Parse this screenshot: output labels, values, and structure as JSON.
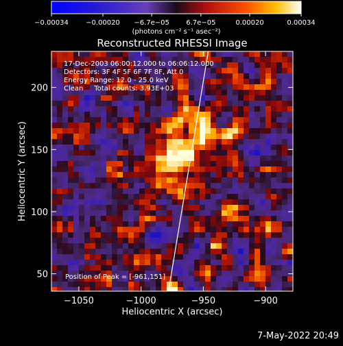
{
  "chart_data": {
    "type": "heatmap",
    "title": "Reconstructed RHESSI Image",
    "xlabel": "Heliocentric X (arcsec)",
    "ylabel": "Heliocentric Y (arcsec)",
    "xlim": [
      -1072,
      -878
    ],
    "ylim": [
      36,
      229
    ],
    "x_ticks": [
      -1050,
      -1000,
      -950,
      -900
    ],
    "x_tick_labels": [
      "−1050",
      "−1000",
      "−950",
      "−900"
    ],
    "y_ticks": [
      50,
      100,
      150,
      200
    ],
    "y_tick_labels": [
      "50",
      "100",
      "150",
      "200"
    ],
    "colorbar": {
      "range": [
        -0.00034,
        0.00034
      ],
      "ticks": [
        -0.00034,
        -0.0002,
        -6.7e-05,
        6.7e-05,
        0.0002,
        0.00034
      ],
      "tick_labels": [
        "−0.00034",
        "−0.00020",
        "−6.7e−05",
        "6.7e−05",
        "0.00020",
        "0.00034"
      ],
      "unit_label": "(photons cm⁻² s⁻¹ asec⁻²)"
    },
    "annotations": [
      "17-Dec-2003 06:00:12.000 to 06:06:12.000",
      "Detectors: 3F 4F 5F 6F 7F 8F, Att 0",
      "Energy Range: 12.0 - 25.0 keV",
      "Clean     Total counts: 3.93E+03",
      "Position of Peak = [-961,151]"
    ],
    "peak": {
      "x": -961,
      "y": 151
    },
    "limb_line": {
      "x1": -978,
      "y1": 36,
      "x2": -946,
      "y2": 229
    },
    "grid": false
  },
  "footer": {
    "timestamp": "7-May-2022 20:49"
  },
  "colors": {
    "background": "#000000",
    "foreground": "#ffffff"
  }
}
